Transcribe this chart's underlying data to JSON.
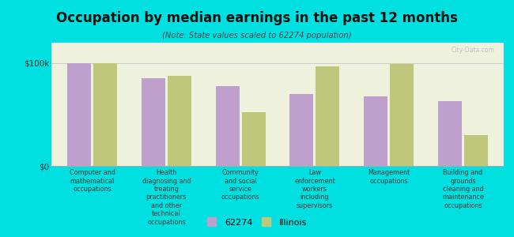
{
  "title": "Occupation by median earnings in the past 12 months",
  "subtitle": "(Note: State values scaled to 62274 population)",
  "background_outer": "#00e0e0",
  "background_chart": "#eef2dc",
  "bar_color_62274": "#bf9fcc",
  "bar_color_illinois": "#bfc87a",
  "categories": [
    "Computer and\nmathematical\noccupations",
    "Health\ndiagnosing and\ntreating\npractitioners\nand other\ntechnical\noccupations",
    "Community\nand social\nservice\noccupations",
    "Law\nenforcement\nworkers\nincluding\nsupervisors",
    "Management\noccupations",
    "Building and\ngrounds\ncleaning and\nmaintenance\noccupations"
  ],
  "values_62274": [
    100000,
    85000,
    78000,
    70000,
    68000,
    63000
  ],
  "values_illinois": [
    100000,
    88000,
    52000,
    97000,
    99000,
    30000
  ],
  "ylim": [
    0,
    120000
  ],
  "yticks": [
    0,
    100000
  ],
  "ytick_labels": [
    "$0",
    "$100k"
  ],
  "legend_62274": "62274",
  "legend_illinois": "Illinois",
  "watermark": "City-Data.com"
}
